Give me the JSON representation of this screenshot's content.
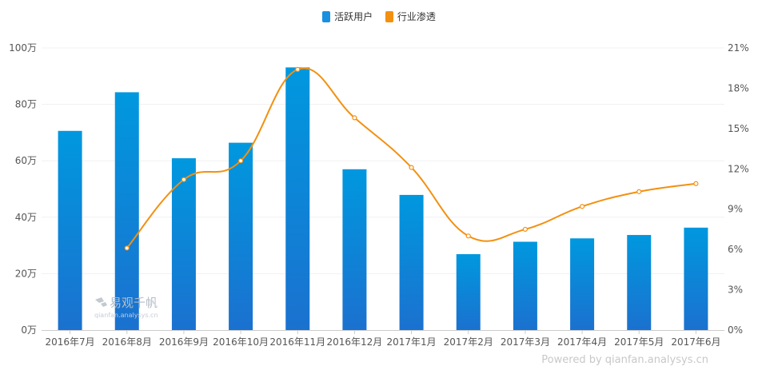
{
  "legend": {
    "items": [
      {
        "label": "活跃用户",
        "color": "#1a8fdf"
      },
      {
        "label": "行业渗透",
        "color": "#f39010"
      }
    ]
  },
  "watermark": {
    "name": "易观千帆",
    "url": "qianfan.analysys.cn"
  },
  "credit": "Powered by qianfan.analysys.cn",
  "chart_data": {
    "type": "bar",
    "categories": [
      "2016年7月",
      "2016年8月",
      "2016年9月",
      "2016年10月",
      "2016年11月",
      "2016年12月",
      "2017年1月",
      "2017年2月",
      "2017年3月",
      "2017年4月",
      "2017年5月",
      "2017年6月"
    ],
    "series": [
      {
        "name": "活跃用户",
        "type": "bar",
        "axis": "left",
        "color_top": "#0098df",
        "color_bottom": "#1b71cf",
        "values": [
          70.6,
          84.3,
          60.9,
          66.4,
          93.1,
          57.0,
          47.9,
          26.9,
          31.3,
          32.5,
          33.7,
          36.3
        ]
      },
      {
        "name": "行业渗透",
        "type": "line",
        "axis": "right",
        "color": "#f39010",
        "values": [
          null,
          6.1,
          11.2,
          12.6,
          19.4,
          15.8,
          12.1,
          7.0,
          7.5,
          9.2,
          10.3,
          10.9
        ]
      }
    ],
    "y_left": {
      "ylim": [
        0,
        100
      ],
      "ticks": [
        "0万",
        "20万",
        "40万",
        "60万",
        "80万",
        "100万"
      ]
    },
    "y_right": {
      "ylim": [
        0,
        21
      ],
      "ticks": [
        "0%",
        "3%",
        "6%",
        "9%",
        "12%",
        "15%",
        "18%",
        "21%"
      ]
    },
    "grid": true,
    "legend_position": "top-center"
  }
}
